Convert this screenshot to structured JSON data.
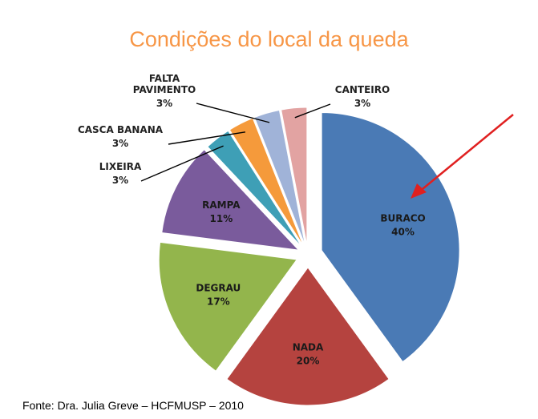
{
  "chart_data": {
    "type": "pie",
    "title": "Condições do local da queda",
    "slices": [
      {
        "label": "BURACO",
        "value": 40,
        "value_label": "40%",
        "color": "#4a7ab5"
      },
      {
        "label": "NADA",
        "value": 20,
        "value_label": "20%",
        "color": "#b5433f"
      },
      {
        "label": "DEGRAU",
        "value": 17,
        "value_label": "17%",
        "color": "#93b54c"
      },
      {
        "label": "RAMPA",
        "value": 11,
        "value_label": "11%",
        "color": "#7a5b9c"
      },
      {
        "label": "LIXEIRA",
        "value": 3,
        "value_label": "3%",
        "color": "#3e9fb6"
      },
      {
        "label": "CASCA BANANA",
        "value": 3,
        "value_label": "3%",
        "color": "#f59a3b"
      },
      {
        "label": "FALTA PAVIMENTO",
        "value": 3,
        "value_label": "3%",
        "color": "#a0b3d8"
      },
      {
        "label": "CANTEIRO",
        "value": 3,
        "value_label": "3%",
        "color": "#e2a3a2"
      }
    ],
    "annotations": [
      {
        "type": "arrow",
        "color": "#e02020",
        "points_to": "BURACO"
      }
    ]
  },
  "source": "Fonte: Dra. Julia Greve – HCFMUSP – 2010"
}
